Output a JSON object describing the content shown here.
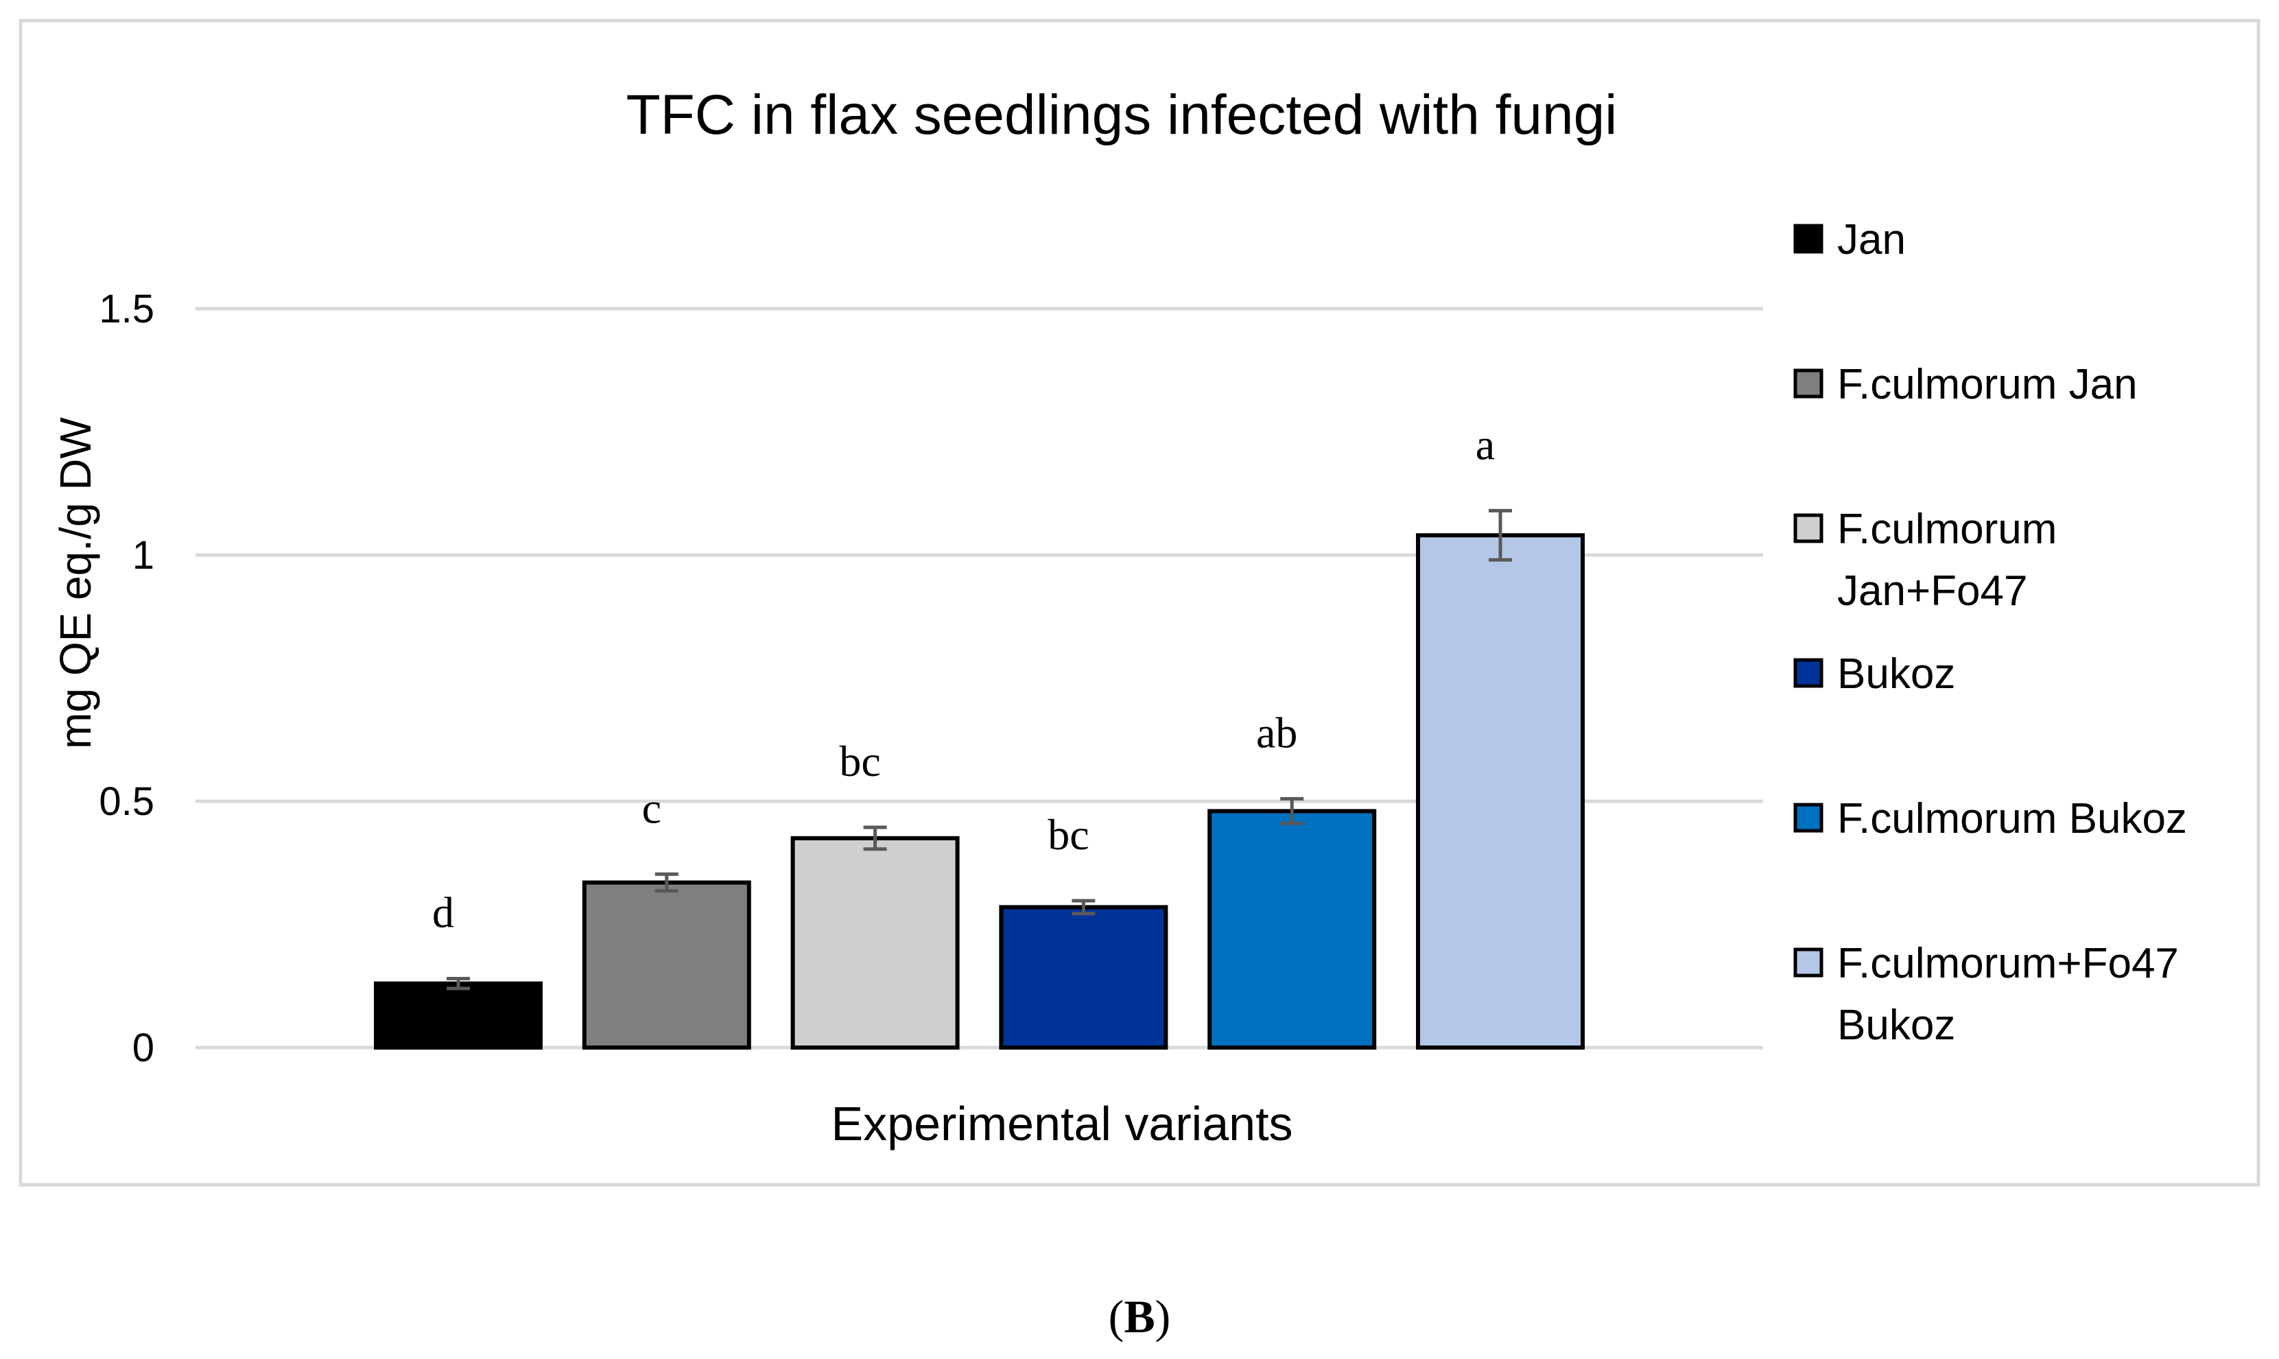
{
  "chart_data": {
    "type": "bar",
    "title": "TFC in flax seedlings infected with fungi",
    "xlabel": "Experimental variants",
    "ylabel": "mg QE eq./g DW",
    "ylim": [
      0,
      1.5
    ],
    "yticks": [
      {
        "value": 0,
        "label": "0"
      },
      {
        "value": 0.5,
        "label": "0.5"
      },
      {
        "value": 1,
        "label": "1"
      },
      {
        "value": 1.5,
        "label": "1.5"
      }
    ],
    "grid": true,
    "legend_position": "right",
    "series": [
      {
        "name": "Jan",
        "value": 0.13,
        "error": 0.01,
        "significance": "d",
        "color": "#000000"
      },
      {
        "name": "F.culmorum Jan",
        "value": 0.335,
        "error": 0.017,
        "significance": "c",
        "color": "#7f7f7f"
      },
      {
        "name": "F.culmorum Jan+Fo47",
        "value": 0.425,
        "error": 0.022,
        "significance": "bc",
        "color": "#d0cece"
      },
      {
        "name": "Bukoz",
        "value": 0.285,
        "error": 0.013,
        "significance": "bc",
        "color": "#003399"
      },
      {
        "name": "F.culmorum Bukoz",
        "value": 0.48,
        "error": 0.025,
        "significance": "ab",
        "color": "#0070c0"
      },
      {
        "name": "F.culmorum+Fo47 Bukoz",
        "value": 1.04,
        "error": 0.05,
        "significance": "a",
        "color": "#b4c7e7"
      }
    ],
    "legend_lines": [
      [
        "Jan"
      ],
      [
        "F.culmorum Jan"
      ],
      [
        "F.culmorum",
        "Jan+Fo47"
      ],
      [
        "Bukoz"
      ],
      [
        "F.culmorum Bukoz"
      ],
      [
        "F.culmorum+Fo47",
        "Bukoz"
      ]
    ]
  },
  "panel_label": {
    "open": "(",
    "letter": "B",
    "close": ")"
  }
}
